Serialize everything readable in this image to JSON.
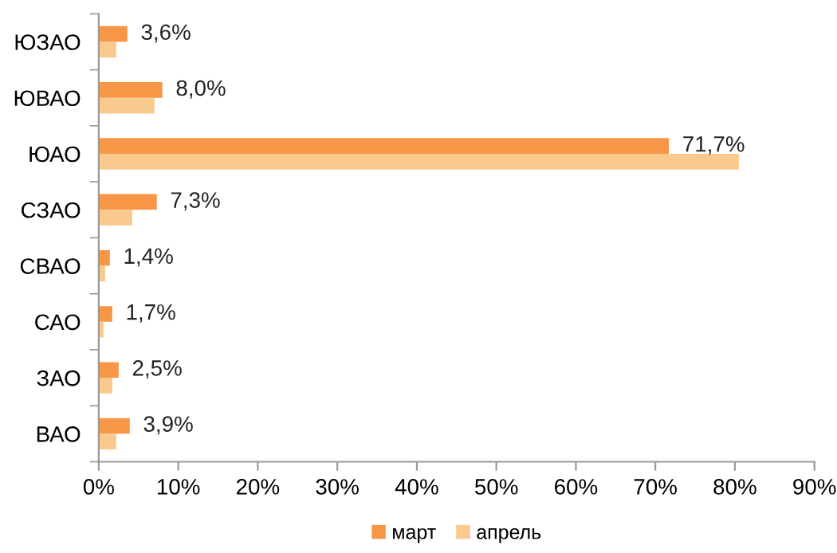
{
  "chart_data": {
    "type": "bar",
    "orientation": "horizontal",
    "categories": [
      "ЮЗАО",
      "ЮВАО",
      "ЮАО",
      "СЗАО",
      "СВАО",
      "САО",
      "ЗАО",
      "ВАО"
    ],
    "series": [
      {
        "name": "март",
        "color": "#f79646",
        "values": [
          3.6,
          8.0,
          71.7,
          7.3,
          1.4,
          1.7,
          2.5,
          3.9
        ],
        "value_labels": [
          "3,6%",
          "8,0%",
          "71,7%",
          "7,3%",
          "1,4%",
          "1,7%",
          "2,5%",
          "3,9%"
        ]
      },
      {
        "name": "апрель",
        "color": "#fac98e",
        "values": [
          2.2,
          7.0,
          80.5,
          4.2,
          0.8,
          0.6,
          1.7,
          2.2
        ]
      }
    ],
    "xlim": [
      0,
      90
    ],
    "xticks": [
      {
        "value": 0,
        "label": "0%"
      },
      {
        "value": 10,
        "label": "10%"
      },
      {
        "value": 20,
        "label": "20%"
      },
      {
        "value": 30,
        "label": "30%"
      },
      {
        "value": 40,
        "label": "40%"
      },
      {
        "value": 50,
        "label": "50%"
      },
      {
        "value": 60,
        "label": "60%"
      },
      {
        "value": 70,
        "label": "70%"
      },
      {
        "value": 80,
        "label": "80%"
      },
      {
        "value": 90,
        "label": "90%"
      }
    ],
    "grid": false,
    "legend": "bottom"
  }
}
